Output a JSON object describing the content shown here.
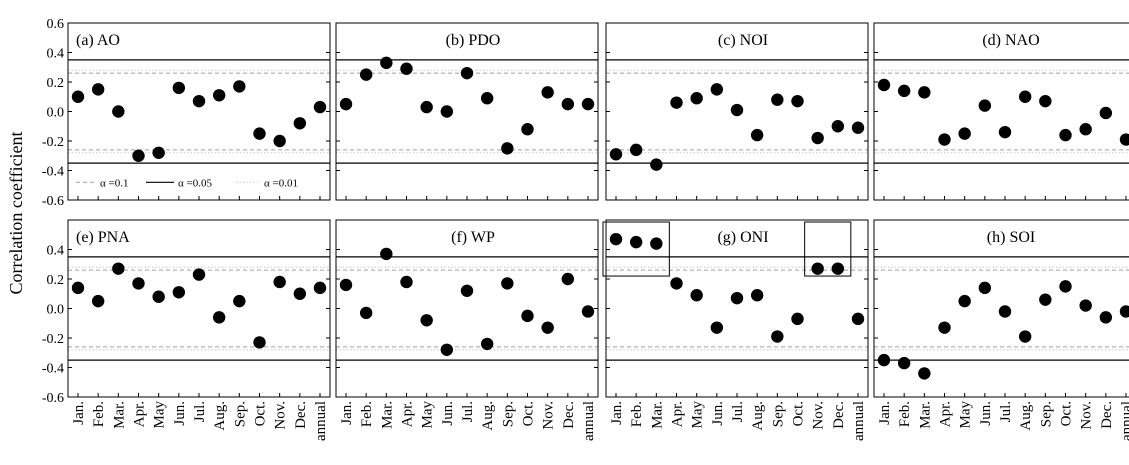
{
  "ylabel": "Correlation coefficient",
  "categories": [
    "Jan.",
    "Feb.",
    "Mar.",
    "Apr.",
    "May",
    "Jun.",
    "Jul.",
    "Aug.",
    "Sep.",
    "Oct.",
    "Nov.",
    "Dec.",
    "annual"
  ],
  "yticks": [
    "0.6",
    "0.4",
    "0.2",
    "0.0",
    "-0.2",
    "-0.4",
    "-0.6"
  ],
  "legend": {
    "dash": "α =0.1",
    "solid": "α =0.05",
    "dot": "α =0.01"
  },
  "colors": {
    "points": "#000000",
    "line_0_1": "#a0a0a0",
    "line_0_05": "#000000",
    "line_0_01": "#c8c8c8"
  },
  "chart_data": [
    {
      "type": "scatter",
      "title": "(a) AO",
      "ylim": [
        -0.6,
        0.6
      ],
      "thresholds": {
        "p_0_1": 0.26,
        "p_0_05": 0.35,
        "p_0_01": 0.28
      },
      "values": [
        0.1,
        0.15,
        0.0,
        -0.3,
        -0.28,
        0.16,
        0.07,
        0.11,
        0.17,
        -0.15,
        -0.2,
        -0.08,
        0.03
      ]
    },
    {
      "type": "scatter",
      "title": "(b) PDO",
      "ylim": [
        -0.6,
        0.6
      ],
      "thresholds": {
        "p_0_1": 0.26,
        "p_0_05": 0.35,
        "p_0_01": 0.28
      },
      "values": [
        0.05,
        0.25,
        0.33,
        0.29,
        0.03,
        0.0,
        0.26,
        0.09,
        -0.25,
        -0.12,
        0.13,
        0.05,
        0.05
      ]
    },
    {
      "type": "scatter",
      "title": "(c) NOI",
      "ylim": [
        -0.6,
        0.6
      ],
      "thresholds": {
        "p_0_1": 0.26,
        "p_0_05": 0.35,
        "p_0_01": 0.28
      },
      "values": [
        -0.29,
        -0.26,
        -0.36,
        0.06,
        0.09,
        0.15,
        0.01,
        -0.16,
        0.08,
        0.07,
        -0.18,
        -0.1,
        -0.11
      ]
    },
    {
      "type": "scatter",
      "title": "(d) NAO",
      "ylim": [
        -0.6,
        0.6
      ],
      "thresholds": {
        "p_0_1": 0.26,
        "p_0_05": 0.35,
        "p_0_01": 0.28
      },
      "values": [
        0.18,
        0.14,
        0.13,
        -0.19,
        -0.15,
        0.04,
        -0.14,
        0.1,
        0.07,
        -0.16,
        -0.12,
        -0.01,
        -0.19
      ]
    },
    {
      "type": "scatter",
      "title": "(e) PNA",
      "ylim": [
        -0.6,
        0.6
      ],
      "thresholds": {
        "p_0_1": 0.26,
        "p_0_05": 0.35,
        "p_0_01": 0.28
      },
      "values": [
        0.14,
        0.05,
        0.27,
        0.17,
        0.08,
        0.11,
        0.23,
        -0.06,
        0.05,
        -0.23,
        0.18,
        0.1,
        0.14
      ]
    },
    {
      "type": "scatter",
      "title": "(f) WP",
      "ylim": [
        -0.6,
        0.6
      ],
      "thresholds": {
        "p_0_1": 0.26,
        "p_0_05": 0.35,
        "p_0_01": 0.28
      },
      "values": [
        0.16,
        -0.03,
        0.37,
        0.18,
        -0.08,
        -0.28,
        0.12,
        -0.24,
        0.17,
        -0.05,
        -0.13,
        0.2,
        -0.02
      ]
    },
    {
      "type": "scatter",
      "title": "(g) ONI",
      "ylim": [
        -0.6,
        0.6
      ],
      "thresholds": {
        "p_0_1": 0.26,
        "p_0_05": 0.35,
        "p_0_01": 0.28
      },
      "values": [
        0.47,
        0.45,
        0.44,
        0.17,
        0.09,
        -0.13,
        0.07,
        0.09,
        -0.19,
        -0.07,
        0.27,
        0.27,
        -0.07
      ],
      "highlight_groups": [
        [
          "Jan.",
          "Mar."
        ],
        [
          "Nov.",
          "Dec."
        ]
      ]
    },
    {
      "type": "scatter",
      "title": "(h) SOI",
      "ylim": [
        -0.6,
        0.6
      ],
      "thresholds": {
        "p_0_1": 0.26,
        "p_0_05": 0.35,
        "p_0_01": 0.28
      },
      "values": [
        -0.35,
        -0.37,
        -0.44,
        -0.13,
        0.05,
        0.14,
        -0.02,
        -0.19,
        0.06,
        0.15,
        0.02,
        -0.06,
        -0.02
      ]
    }
  ]
}
